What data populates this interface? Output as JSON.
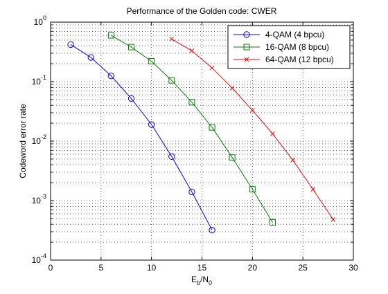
{
  "chart_data": {
    "type": "line",
    "title": "Performance of the Golden code: CWER",
    "xlabel": {
      "main": "E",
      "sub1": "b",
      "sep": "/N",
      "sub2": "0"
    },
    "ylabel": "Codeword error rate",
    "xlim": [
      0,
      30
    ],
    "ylim": [
      0.0001,
      1
    ],
    "yscale": "log",
    "grid": true,
    "legend_position": "top-right",
    "x_ticks": [
      0,
      5,
      10,
      15,
      20,
      25,
      30
    ],
    "x_tick_labels": [
      "0",
      "5",
      "10",
      "15",
      "20",
      "25",
      "30"
    ],
    "y_ticks": [
      0.0001,
      0.001,
      0.01,
      0.1,
      1
    ],
    "y_tick_labels": [
      {
        "base": "10",
        "exp": "-4"
      },
      {
        "base": "10",
        "exp": "-3"
      },
      {
        "base": "10",
        "exp": "-2"
      },
      {
        "base": "10",
        "exp": "-1"
      },
      {
        "base": "10",
        "exp": "0"
      }
    ],
    "series": [
      {
        "name": "4-QAM   (4 bpcu)",
        "color": "#0000ff",
        "marker": "circle",
        "x": [
          2,
          4,
          6,
          8,
          10,
          12,
          14,
          16
        ],
        "y": [
          0.42,
          0.255,
          0.125,
          0.052,
          0.019,
          0.0055,
          0.0014,
          0.00032
        ]
      },
      {
        "name": "16-QAM   (8 bpcu)",
        "color": "#008000",
        "marker": "square",
        "x": [
          6,
          8,
          10,
          12,
          14,
          16,
          18,
          20,
          22
        ],
        "y": [
          0.6,
          0.38,
          0.22,
          0.105,
          0.045,
          0.017,
          0.0053,
          0.00155,
          0.00043
        ]
      },
      {
        "name": "64-QAM  (12 bpcu)",
        "color": "#ff0000",
        "marker": "x",
        "x": [
          12,
          14,
          16,
          18,
          20,
          22,
          24,
          26,
          28
        ],
        "y": [
          0.52,
          0.33,
          0.17,
          0.078,
          0.033,
          0.0133,
          0.0048,
          0.00155,
          0.00048
        ]
      }
    ]
  }
}
